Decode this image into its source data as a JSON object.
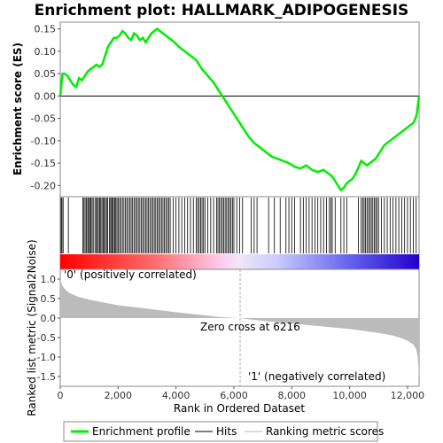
{
  "chart_data": {
    "type": "line",
    "title": "Enrichment plot: HALLMARK_ADIPOGENESIS",
    "top_panel": {
      "ylabel": "Enrichment score (ES)",
      "ylim": [
        -0.225,
        0.165
      ],
      "yticks": [
        "0.15",
        "0.10",
        "0.05",
        "0.00",
        "-0.05",
        "-0.10",
        "-0.15",
        "-0.20"
      ],
      "series": [
        {
          "name": "Enrichment profile",
          "color": "#00ee00",
          "x": [
            0,
            30,
            80,
            150,
            250,
            350,
            450,
            550,
            650,
            750,
            850,
            950,
            1050,
            1150,
            1250,
            1350,
            1450,
            1550,
            1650,
            1750,
            1850,
            1950,
            2050,
            2150,
            2250,
            2350,
            2450,
            2550,
            2650,
            2750,
            2850,
            2950,
            3050,
            3150,
            3250,
            3350,
            3450,
            3550,
            3650,
            3750,
            3850,
            3950,
            4100,
            4300,
            4500,
            4700,
            4900,
            5100,
            5300,
            5500,
            5700,
            5900,
            6100,
            6300,
            6500,
            6700,
            6900,
            7100,
            7300,
            7500,
            7700,
            7900,
            8100,
            8300,
            8500,
            8700,
            8900,
            9100,
            9200,
            9300,
            9400,
            9500,
            9600,
            9700,
            9800,
            9900,
            10000,
            10100,
            10200,
            10300,
            10400,
            10500,
            10600,
            10700,
            10800,
            10900,
            11000,
            11100,
            11200,
            11300,
            11400,
            11500,
            11600,
            11700,
            11800,
            11900,
            12000,
            12100,
            12200,
            12280,
            12320,
            12360,
            12400
          ],
          "y": [
            0.0,
            0.02,
            0.05,
            0.05,
            0.045,
            0.035,
            0.025,
            0.02,
            0.04,
            0.035,
            0.045,
            0.055,
            0.06,
            0.065,
            0.07,
            0.065,
            0.07,
            0.09,
            0.11,
            0.12,
            0.13,
            0.13,
            0.135,
            0.145,
            0.14,
            0.13,
            0.125,
            0.14,
            0.135,
            0.125,
            0.13,
            0.12,
            0.13,
            0.14,
            0.145,
            0.15,
            0.145,
            0.14,
            0.135,
            0.13,
            0.125,
            0.12,
            0.11,
            0.1,
            0.09,
            0.08,
            0.06,
            0.045,
            0.03,
            0.01,
            -0.01,
            -0.03,
            -0.05,
            -0.07,
            -0.09,
            -0.105,
            -0.115,
            -0.125,
            -0.135,
            -0.14,
            -0.145,
            -0.15,
            -0.158,
            -0.162,
            -0.155,
            -0.165,
            -0.17,
            -0.165,
            -0.17,
            -0.175,
            -0.18,
            -0.19,
            -0.2,
            -0.21,
            -0.205,
            -0.195,
            -0.19,
            -0.185,
            -0.175,
            -0.16,
            -0.145,
            -0.15,
            -0.155,
            -0.15,
            -0.145,
            -0.14,
            -0.13,
            -0.12,
            -0.11,
            -0.105,
            -0.1,
            -0.095,
            -0.09,
            -0.085,
            -0.08,
            -0.075,
            -0.07,
            -0.065,
            -0.06,
            -0.05,
            -0.04,
            -0.02,
            0.0
          ]
        }
      ]
    },
    "hits_panel": {
      "legend_name": "Hits",
      "hit_positions": [
        30,
        60,
        100,
        280,
        780,
        820,
        860,
        900,
        950,
        980,
        1020,
        1060,
        1100,
        1140,
        1200,
        1250,
        1280,
        1320,
        1360,
        1400,
        1440,
        1480,
        1520,
        1560,
        1600,
        1640,
        1700,
        1740,
        1780,
        1800,
        1840,
        1880,
        1920,
        1960,
        2000,
        2050,
        2100,
        2150,
        2200,
        2250,
        2300,
        2350,
        2400,
        2450,
        2500,
        2550,
        2600,
        2650,
        2700,
        2750,
        2800,
        2850,
        2900,
        2950,
        3000,
        3050,
        3100,
        3150,
        3200,
        3250,
        3300,
        3350,
        3400,
        3450,
        3500,
        3550,
        3600,
        3650,
        3700,
        3750,
        3800,
        3900,
        4000,
        4100,
        4200,
        4300,
        4400,
        4500,
        4600,
        4700,
        4750,
        4800,
        4850,
        4900,
        4950,
        5000,
        5100,
        5200,
        5300,
        5400,
        5450,
        5500,
        5550,
        5600,
        5650,
        5700,
        5750,
        5800,
        5850,
        5900,
        5950,
        6000,
        6100,
        6200,
        6300,
        6600,
        6700,
        6800,
        7200,
        7400,
        7600,
        7800,
        7900,
        8000,
        8100,
        8300,
        8400,
        8500,
        8600,
        8700,
        8800,
        8900,
        9000,
        9100,
        9200,
        9300,
        9350,
        9400,
        9500,
        9700,
        9800,
        9900,
        10300,
        10400,
        10450,
        10500,
        10550,
        10600,
        10650,
        10700,
        10750,
        10800,
        10850,
        10900,
        10950,
        11000,
        11100,
        11200,
        11300,
        11400,
        11500,
        11600,
        11700,
        11800,
        11900,
        12000,
        12100,
        12200,
        12300
      ]
    },
    "rank_panel": {
      "ylabel": "Ranked list metric (Signal2Noise)",
      "xlabel": "Rank in Ordered Dataset",
      "ylim": [
        -1.75,
        1.25
      ],
      "yticks": [
        "1.0",
        "0.5",
        "0.0",
        "-0.5",
        "-1.0",
        "-1.5"
      ],
      "legend_name": "Ranking metric scores",
      "fill_color": "#bbbbbb",
      "x": [
        0,
        20,
        60,
        150,
        300,
        600,
        1000,
        1500,
        2000,
        3000,
        4000,
        5000,
        5500,
        6000,
        6216,
        6500,
        7000,
        8000,
        9000,
        10000,
        10500,
        11000,
        11500,
        11800,
        12000,
        12200,
        12300,
        12350,
        12380,
        12400
      ],
      "y": [
        1.05,
        0.95,
        0.85,
        0.75,
        0.65,
        0.55,
        0.47,
        0.4,
        0.33,
        0.24,
        0.15,
        0.07,
        0.03,
        0.005,
        0.0,
        -0.03,
        -0.07,
        -0.14,
        -0.21,
        -0.28,
        -0.33,
        -0.38,
        -0.45,
        -0.52,
        -0.58,
        -0.68,
        -0.8,
        -1.0,
        -1.3,
        -1.6
      ]
    },
    "xlim": [
      0,
      12400
    ],
    "xticks": [
      {
        "value": 0,
        "label": "0"
      },
      {
        "value": 2000,
        "label": "2,000"
      },
      {
        "value": 4000,
        "label": "4,000"
      },
      {
        "value": 6000,
        "label": "6,000"
      },
      {
        "value": 8000,
        "label": "8,000"
      },
      {
        "value": 10000,
        "label": "10,000"
      },
      {
        "value": 12000,
        "label": "12,000"
      }
    ],
    "zero_cross": {
      "value": 6216,
      "label": "Zero cross at 6216"
    },
    "annotations": {
      "positive": "'0' (positively correlated)",
      "negative": "'1' (negatively correlated)"
    },
    "colors": {
      "positive_label": "#ff0000",
      "negative_label": "#0000ff",
      "hits": "#000000",
      "zero_line": "#000000"
    },
    "legend": {
      "position": "bottom",
      "items": [
        "Enrichment profile",
        "Hits",
        "Ranking metric scores"
      ]
    }
  }
}
